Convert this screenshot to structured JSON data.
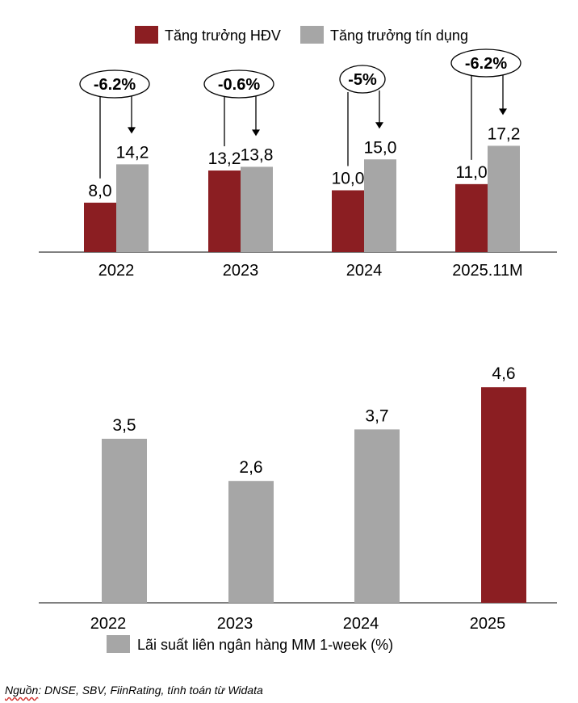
{
  "colors": {
    "hdv": "#8b1e22",
    "credit": "#a6a6a6",
    "interbank": "#a6a6a6",
    "interbank_highlight": "#8b1e22",
    "axis": "#000000"
  },
  "chart_data": [
    {
      "type": "bar",
      "title": "",
      "categories": [
        "2022",
        "2023",
        "2024",
        "2025.11M"
      ],
      "series": [
        {
          "name": "Tăng trưởng HĐV",
          "values": [
            8.0,
            13.2,
            10.0,
            11.0
          ],
          "labels": [
            "8,0",
            "13,2",
            "10,0",
            "11,0"
          ]
        },
        {
          "name": "Tăng trưởng tín dụng",
          "values": [
            14.2,
            13.8,
            15.0,
            17.2
          ],
          "labels": [
            "14,2",
            "13,8",
            "15,0",
            "17,2"
          ]
        }
      ],
      "gap_annotations": [
        "-6.2%",
        "-0.6%",
        "-5%",
        "-6.2%"
      ],
      "ylim": [
        0,
        24
      ],
      "legend": "top",
      "grid": false
    },
    {
      "type": "bar",
      "title": "",
      "categories": [
        "2022",
        "2023",
        "2024",
        "2025"
      ],
      "series": [
        {
          "name": "Lãi suất liên ngân hàng MM 1-week (%)",
          "values": [
            3.5,
            2.6,
            3.7,
            4.6
          ],
          "labels": [
            "3,5",
            "2,6",
            "3,7",
            "4,6"
          ]
        }
      ],
      "highlight_index": 3,
      "ylim": [
        0,
        5
      ],
      "legend": "bottom",
      "grid": false
    }
  ],
  "source": {
    "prefix": "Nguồn",
    "rest": ": DNSE, SBV, FiinRating, tính toán từ Widata"
  }
}
